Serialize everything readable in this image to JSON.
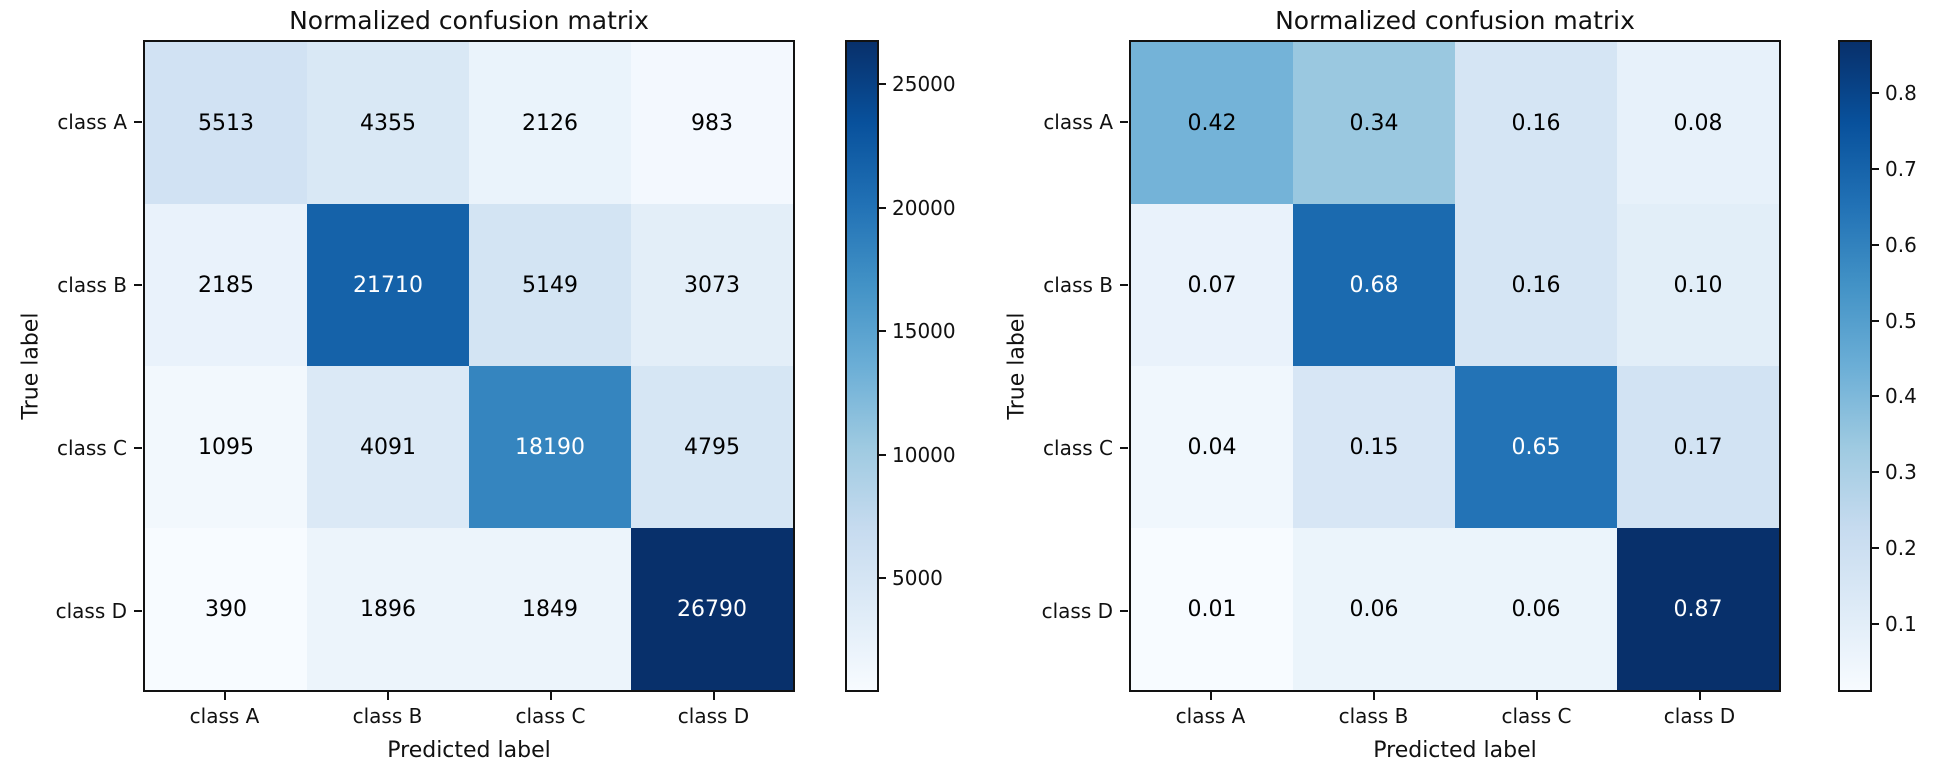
{
  "page_background": "#ffffff",
  "text_color": "#111111",
  "cell_text_colors": {
    "light": "#ffffff",
    "dark": "#000000"
  },
  "blues_colormap": [
    "#f7fbff",
    "#deebf7",
    "#c6dbef",
    "#9ecae1",
    "#6baed6",
    "#4292c6",
    "#2171b5",
    "#08519c",
    "#08306b"
  ],
  "chart_data": [
    {
      "type": "heatmap",
      "title": "Normalized confusion matrix",
      "xlabel": "Predicted label",
      "ylabel": "True label",
      "x_categories": [
        "class A",
        "class B",
        "class C",
        "class D"
      ],
      "y_categories": [
        "class A",
        "class B",
        "class C",
        "class D"
      ],
      "values": [
        [
          5513,
          4355,
          2126,
          983
        ],
        [
          2185,
          21710,
          5149,
          3073
        ],
        [
          1095,
          4091,
          18190,
          4795
        ],
        [
          390,
          1896,
          1849,
          26790
        ]
      ],
      "value_format": "int",
      "colormap": "Blues",
      "vmin": 390,
      "vmax": 26790,
      "colorbar_ticks": [
        5000,
        10000,
        15000,
        20000,
        25000
      ],
      "colorbar_tick_format": "int",
      "legend_position": "right-colorbar",
      "grid": false
    },
    {
      "type": "heatmap",
      "title": "Normalized confusion matrix",
      "xlabel": "Predicted label",
      "ylabel": "True label",
      "x_categories": [
        "class A",
        "class B",
        "class C",
        "class D"
      ],
      "y_categories": [
        "class A",
        "class B",
        "class C",
        "class D"
      ],
      "values": [
        [
          0.42,
          0.34,
          0.16,
          0.08
        ],
        [
          0.07,
          0.68,
          0.16,
          0.1
        ],
        [
          0.04,
          0.15,
          0.65,
          0.17
        ],
        [
          0.01,
          0.06,
          0.06,
          0.87
        ]
      ],
      "value_format": "2dp",
      "colormap": "Blues",
      "vmin": 0.01,
      "vmax": 0.87,
      "colorbar_ticks": [
        0.1,
        0.2,
        0.3,
        0.4,
        0.5,
        0.6,
        0.7,
        0.8
      ],
      "colorbar_tick_format": "1dp",
      "legend_position": "right-colorbar",
      "grid": false
    }
  ]
}
